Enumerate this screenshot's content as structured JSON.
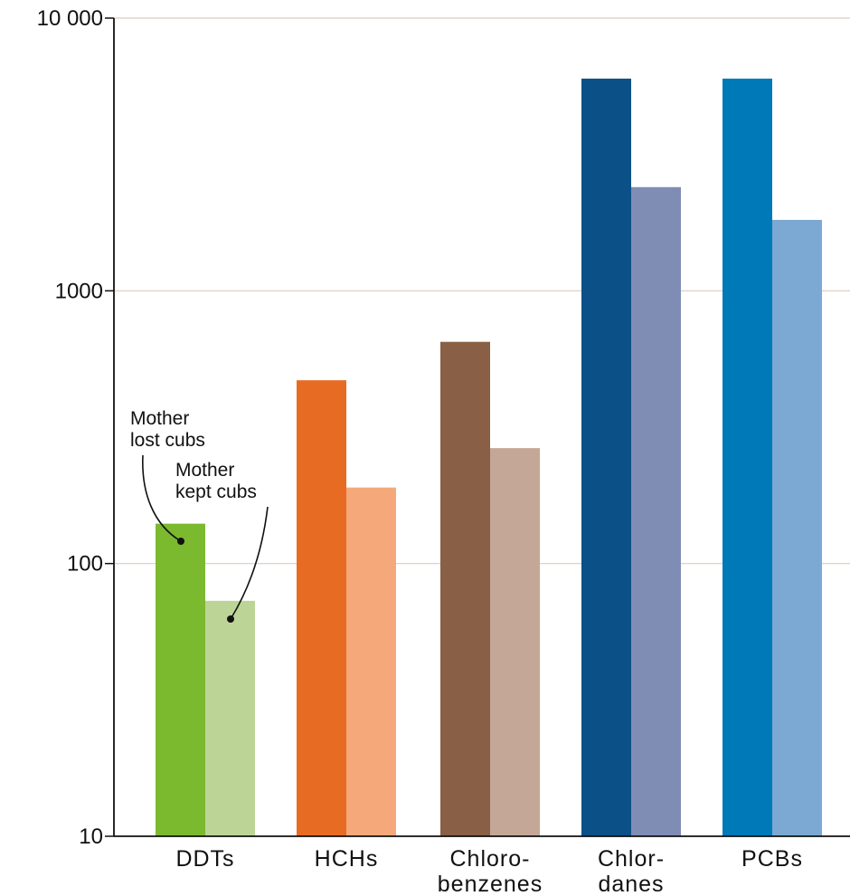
{
  "chart_data": {
    "type": "bar",
    "y_scale": "log",
    "ylim": [
      10,
      10000
    ],
    "yticks": [
      10,
      100,
      1000,
      10000
    ],
    "ytick_labels": [
      "10",
      "100",
      "1000",
      "10 000"
    ],
    "grid": "horizontal",
    "categories": [
      [
        "DDTs"
      ],
      [
        "HCHs"
      ],
      [
        "Chloro-",
        "benzenes"
      ],
      [
        "Chlor-",
        "danes"
      ],
      [
        "PCBs"
      ]
    ],
    "series": [
      {
        "values": [
          140,
          470,
          650,
          6000,
          6000
        ],
        "colors": [
          "#7bb92f",
          "#e86b24",
          "#895f46",
          "#0c5088",
          "#0079b8"
        ]
      },
      {
        "values": [
          73,
          190,
          265,
          2400,
          1820
        ],
        "colors": [
          "#bcd597",
          "#f5a97b",
          "#c4a796",
          "#7f8db5",
          "#7ca9d3"
        ]
      }
    ],
    "annotations": [
      {
        "lines": [
          "Mother",
          "lost cubs"
        ],
        "target_series": 0,
        "target_category": 0
      },
      {
        "lines": [
          "Mother",
          "kept cubs"
        ],
        "target_series": 1,
        "target_category": 0
      }
    ]
  }
}
